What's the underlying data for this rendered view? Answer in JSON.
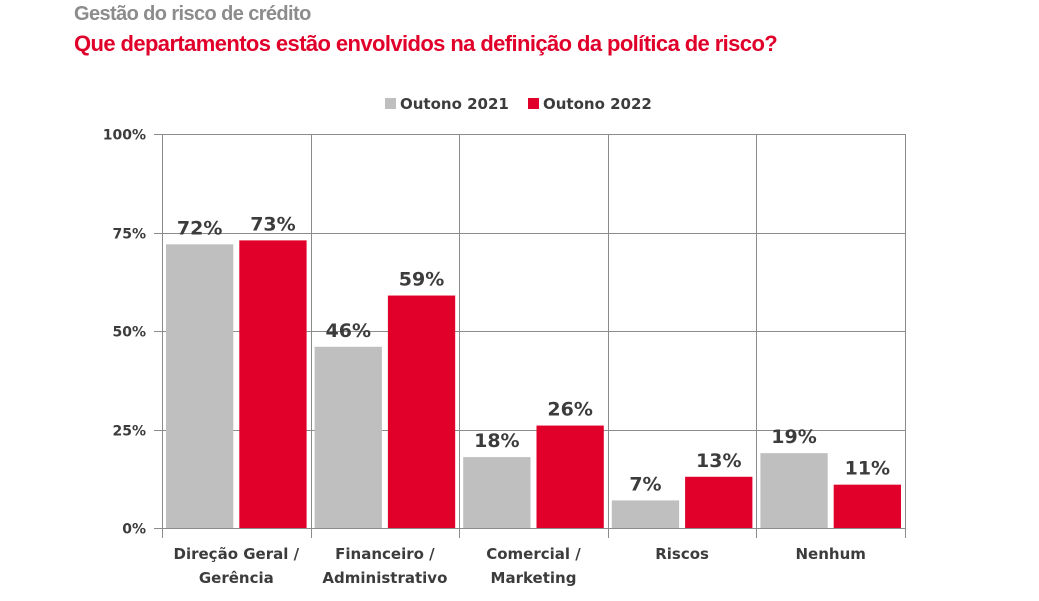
{
  "header": {
    "supertitle": "Gestão do risco de crédito",
    "title": "Que departamentos estão envolvidos na definição da política de risco?"
  },
  "chart_data": {
    "type": "bar",
    "title": "Que departamentos estão envolvidos na definição da política de risco?",
    "subtitle": "Gestão do risco de crédito",
    "xlabel": "",
    "ylabel": "",
    "ylim": [
      0,
      100
    ],
    "yticks": [
      0,
      25,
      50,
      75,
      100
    ],
    "ytick_labels": [
      "0%",
      "25%",
      "50%",
      "75%",
      "100%"
    ],
    "grid": true,
    "legend_position": "top-center",
    "categories": [
      [
        "Direção Geral /",
        "Gerência"
      ],
      [
        "Financeiro /",
        "Administrativo"
      ],
      [
        "Comercial /",
        "Marketing"
      ],
      [
        "Riscos"
      ],
      [
        "Nenhum"
      ]
    ],
    "series": [
      {
        "name": "Outono 2021",
        "color": "#bfbfbf",
        "values": [
          72,
          46,
          18,
          7,
          19
        ],
        "labels": [
          "72%",
          "46%",
          "18%",
          "7%",
          "19%"
        ]
      },
      {
        "name": "Outono 2022",
        "color": "#e0002a",
        "values": [
          73,
          59,
          26,
          13,
          11
        ],
        "labels": [
          "73%",
          "59%",
          "26%",
          "13%",
          "11%"
        ]
      }
    ]
  }
}
